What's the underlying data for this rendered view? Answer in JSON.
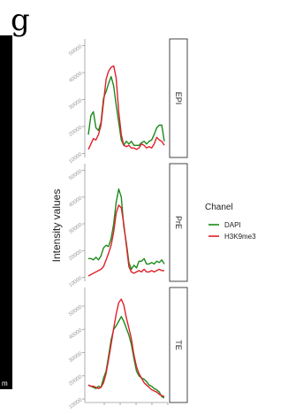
{
  "panel_letter": "g",
  "fragment_text": "m",
  "chart_data": {
    "type": "line",
    "ylabel": "Intensity values",
    "legend": {
      "title": "Chanel",
      "placement": "right",
      "entries": [
        {
          "name": "DAPI",
          "color": "#1a8a1a"
        },
        {
          "name": "H3K9me3",
          "color": "#e0202a"
        }
      ]
    },
    "facets": [
      {
        "strip": "EPI",
        "yticks": [
          10000,
          20000,
          30000,
          40000,
          50000
        ],
        "tick_labels": [
          "10000",
          "20000",
          "30000",
          "40000",
          "50000"
        ],
        "ylim": [
          8500,
          52500
        ],
        "series": [
          {
            "name": "DAPI",
            "color": "#1a8a1a",
            "x": [
              0,
              1,
              2,
              3,
              4,
              5,
              6,
              7,
              8,
              9,
              10,
              11,
              12,
              13,
              14,
              15,
              16,
              17,
              18,
              19,
              20,
              21,
              22,
              23,
              24,
              25,
              26,
              27,
              28,
              29,
              30
            ],
            "y": [
              17000,
              24000,
              25500,
              19500,
              18500,
              21500,
              30500,
              33000,
              36000,
              38500,
              35000,
              28000,
              21500,
              15000,
              13000,
              14500,
              13500,
              14500,
              13000,
              13000,
              13000,
              14000,
              14500,
              13500,
              14500,
              15000,
              17000,
              19500,
              20500,
              20500,
              14500
            ]
          },
          {
            "name": "H3K9me3",
            "color": "#e0202a",
            "x": [
              0,
              1,
              2,
              3,
              4,
              5,
              6,
              7,
              8,
              9,
              10,
              11,
              12,
              13,
              14,
              15,
              16,
              17,
              18,
              19,
              20,
              21,
              22,
              23,
              24,
              25,
              26,
              27,
              28,
              29,
              30
            ],
            "y": [
              11500,
              13500,
              15500,
              15000,
              17000,
              20500,
              29000,
              37500,
              40500,
              42000,
              42500,
              38000,
              25500,
              17000,
              13000,
              12500,
              13000,
              12000,
              12000,
              11500,
              12000,
              13500,
              13000,
              12000,
              12500,
              12000,
              13500,
              16000,
              15000,
              14500,
              13000
            ]
          }
        ]
      },
      {
        "strip": "PrE",
        "yticks": [
          10000,
          20000,
          30000,
          40000,
          50000
        ],
        "tick_labels": [
          "10000",
          "20000",
          "30000",
          "40000",
          "50000"
        ],
        "ylim": [
          8500,
          52500
        ],
        "series": [
          {
            "name": "DAPI",
            "color": "#1a8a1a",
            "x": [
              0,
              1,
              2,
              3,
              4,
              5,
              6,
              7,
              8,
              9,
              10,
              11,
              12,
              13,
              14,
              15,
              16,
              17,
              18,
              19,
              20,
              21,
              22,
              23,
              24,
              25,
              26,
              27,
              28,
              29,
              30
            ],
            "y": [
              17000,
              17000,
              16500,
              17500,
              16500,
              18000,
              21000,
              22000,
              21500,
              24500,
              30000,
              38000,
              43000,
              40000,
              29000,
              23000,
              15500,
              13000,
              14500,
              13500,
              16000,
              16000,
              17000,
              15000,
              15000,
              15500,
              15000,
              16000,
              15500,
              16500,
              15000
            ]
          },
          {
            "name": "H3K9me3",
            "color": "#e0202a",
            "x": [
              0,
              1,
              2,
              3,
              4,
              5,
              6,
              7,
              8,
              9,
              10,
              11,
              12,
              13,
              14,
              15,
              16,
              17,
              18,
              19,
              20,
              21,
              22,
              23,
              24,
              25,
              26,
              27,
              28,
              29,
              30
            ],
            "y": [
              10500,
              11000,
              11500,
              12000,
              12500,
              13000,
              14000,
              16500,
              19000,
              22000,
              27000,
              34000,
              37000,
              36000,
              30000,
              22000,
              14000,
              12000,
              11500,
              12000,
              12500,
              12000,
              13000,
              12000,
              12000,
              12500,
              12000,
              12500,
              13000,
              12500,
              12500
            ]
          }
        ]
      },
      {
        "strip": "TE",
        "yticks": [
          10000,
          20000,
          30000,
          40000,
          50000
        ],
        "tick_labels": [
          "10000",
          "20000",
          "30000",
          "40000",
          "50000"
        ],
        "ylim": [
          8500,
          58000
        ],
        "series": [
          {
            "name": "DAPI",
            "color": "#1a8a1a",
            "x": [
              0,
              1,
              2,
              3,
              4,
              5,
              6,
              7,
              8,
              9,
              10,
              11,
              12,
              13,
              14,
              15,
              16,
              17,
              18,
              19,
              20,
              21,
              22,
              23,
              24,
              25,
              26,
              27,
              28,
              29,
              30
            ],
            "y": [
              16000,
              15500,
              15000,
              14500,
              15500,
              15000,
              19000,
              22000,
              28500,
              35500,
              40000,
              41500,
              43500,
              45500,
              43500,
              40500,
              37500,
              33500,
              27500,
              22000,
              20000,
              19000,
              18500,
              17500,
              16000,
              15500,
              14500,
              14000,
              13000,
              11000,
              10500
            ]
          },
          {
            "name": "H3K9me3",
            "color": "#e0202a",
            "x": [
              0,
              1,
              2,
              3,
              4,
              5,
              6,
              7,
              8,
              9,
              10,
              11,
              12,
              13,
              14,
              15,
              16,
              17,
              18,
              19,
              20,
              21,
              22,
              23,
              24,
              25,
              26,
              27,
              28,
              29,
              30
            ],
            "y": [
              16000,
              15500,
              15500,
              15000,
              14500,
              15000,
              17000,
              21000,
              27000,
              33500,
              40500,
              46500,
              51500,
              53000,
              50500,
              45000,
              40500,
              36000,
              29000,
              24000,
              21000,
              19000,
              17000,
              16000,
              15000,
              14000,
              13500,
              13000,
              12000,
              11500,
              11000
            ]
          }
        ]
      }
    ]
  }
}
